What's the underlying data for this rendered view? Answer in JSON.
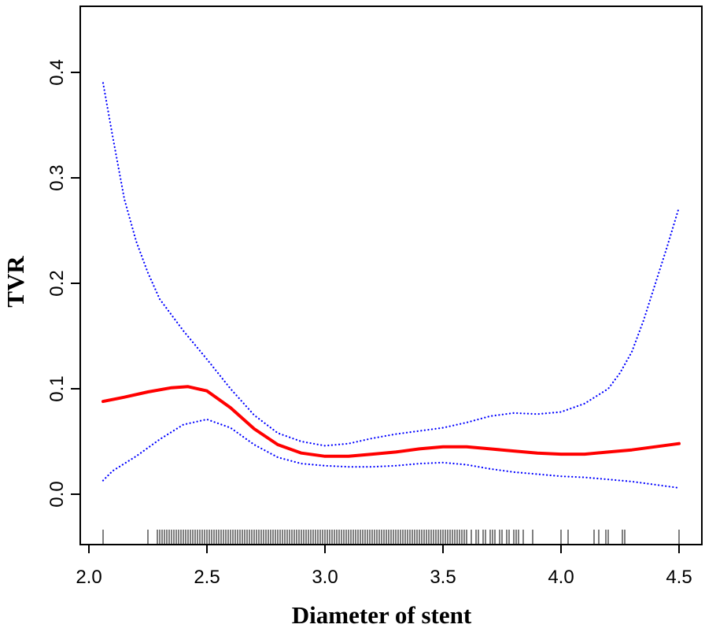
{
  "chart_data": {
    "type": "line",
    "title": "",
    "xlabel": "Diameter of stent",
    "ylabel": "TVR",
    "xlim": [
      2.0,
      4.5
    ],
    "ylim": [
      -0.05,
      0.45
    ],
    "x_ticks": [
      "2.0",
      "2.5",
      "3.0",
      "3.5",
      "4.0",
      "4.5"
    ],
    "y_ticks": [
      "0.0",
      "0.1",
      "0.2",
      "0.3",
      "0.4"
    ],
    "grid": false,
    "legend": "none",
    "series": [
      {
        "role": "estimate",
        "style": "solid",
        "color": "#ff0000",
        "x": [
          2.06,
          2.15,
          2.25,
          2.35,
          2.42,
          2.5,
          2.6,
          2.7,
          2.8,
          2.9,
          3.0,
          3.1,
          3.2,
          3.3,
          3.4,
          3.5,
          3.6,
          3.7,
          3.8,
          3.9,
          4.0,
          4.1,
          4.2,
          4.3,
          4.4,
          4.5
        ],
        "y": [
          0.088,
          0.092,
          0.097,
          0.101,
          0.102,
          0.098,
          0.082,
          0.062,
          0.047,
          0.039,
          0.036,
          0.036,
          0.038,
          0.04,
          0.043,
          0.045,
          0.045,
          0.043,
          0.041,
          0.039,
          0.038,
          0.038,
          0.04,
          0.042,
          0.045,
          0.048
        ]
      },
      {
        "role": "upper-bound",
        "style": "dotted",
        "color": "#0000ff",
        "x": [
          2.06,
          2.1,
          2.15,
          2.2,
          2.25,
          2.3,
          2.4,
          2.5,
          2.6,
          2.7,
          2.8,
          2.9,
          3.0,
          3.1,
          3.2,
          3.3,
          3.4,
          3.5,
          3.6,
          3.7,
          3.8,
          3.9,
          4.0,
          4.1,
          4.2,
          4.25,
          4.3,
          4.35,
          4.4,
          4.45,
          4.5
        ],
        "y": [
          0.39,
          0.34,
          0.28,
          0.24,
          0.21,
          0.185,
          0.155,
          0.128,
          0.1,
          0.075,
          0.058,
          0.05,
          0.046,
          0.048,
          0.053,
          0.057,
          0.06,
          0.063,
          0.068,
          0.074,
          0.077,
          0.076,
          0.078,
          0.086,
          0.1,
          0.115,
          0.135,
          0.165,
          0.2,
          0.235,
          0.272
        ]
      },
      {
        "role": "lower-bound",
        "style": "dotted",
        "color": "#0000ff",
        "x": [
          2.06,
          2.1,
          2.2,
          2.3,
          2.4,
          2.5,
          2.6,
          2.7,
          2.8,
          2.9,
          3.0,
          3.1,
          3.2,
          3.3,
          3.4,
          3.5,
          3.6,
          3.7,
          3.8,
          3.9,
          4.0,
          4.1,
          4.2,
          4.3,
          4.4,
          4.5
        ],
        "y": [
          0.013,
          0.022,
          0.036,
          0.052,
          0.066,
          0.071,
          0.063,
          0.047,
          0.035,
          0.029,
          0.027,
          0.026,
          0.026,
          0.027,
          0.029,
          0.03,
          0.028,
          0.024,
          0.021,
          0.019,
          0.017,
          0.016,
          0.014,
          0.012,
          0.009,
          0.006
        ]
      }
    ],
    "rug": [
      2.06,
      2.25,
      2.29,
      2.3,
      2.31,
      2.32,
      2.33,
      2.34,
      2.35,
      2.36,
      2.37,
      2.38,
      2.39,
      2.4,
      2.41,
      2.42,
      2.43,
      2.44,
      2.45,
      2.46,
      2.47,
      2.48,
      2.49,
      2.5,
      2.51,
      2.52,
      2.53,
      2.54,
      2.55,
      2.56,
      2.57,
      2.58,
      2.59,
      2.6,
      2.61,
      2.62,
      2.63,
      2.64,
      2.65,
      2.66,
      2.67,
      2.68,
      2.69,
      2.7,
      2.71,
      2.72,
      2.73,
      2.74,
      2.75,
      2.76,
      2.77,
      2.78,
      2.79,
      2.8,
      2.81,
      2.82,
      2.83,
      2.84,
      2.85,
      2.86,
      2.87,
      2.88,
      2.89,
      2.9,
      2.91,
      2.92,
      2.93,
      2.94,
      2.95,
      2.96,
      2.97,
      2.98,
      2.99,
      3.0,
      3.01,
      3.02,
      3.03,
      3.04,
      3.05,
      3.06,
      3.07,
      3.08,
      3.09,
      3.1,
      3.11,
      3.12,
      3.13,
      3.14,
      3.15,
      3.16,
      3.17,
      3.18,
      3.19,
      3.2,
      3.21,
      3.22,
      3.23,
      3.24,
      3.25,
      3.26,
      3.27,
      3.28,
      3.29,
      3.3,
      3.31,
      3.32,
      3.33,
      3.34,
      3.35,
      3.36,
      3.37,
      3.38,
      3.39,
      3.4,
      3.41,
      3.42,
      3.43,
      3.44,
      3.45,
      3.46,
      3.47,
      3.48,
      3.49,
      3.5,
      3.51,
      3.52,
      3.53,
      3.54,
      3.55,
      3.56,
      3.57,
      3.58,
      3.59,
      3.6,
      3.62,
      3.64,
      3.65,
      3.67,
      3.68,
      3.7,
      3.71,
      3.72,
      3.74,
      3.75,
      3.77,
      3.78,
      3.8,
      3.81,
      3.82,
      3.84,
      3.88,
      4.0,
      4.03,
      4.14,
      4.16,
      4.19,
      4.2,
      4.26,
      4.27,
      4.5
    ]
  }
}
